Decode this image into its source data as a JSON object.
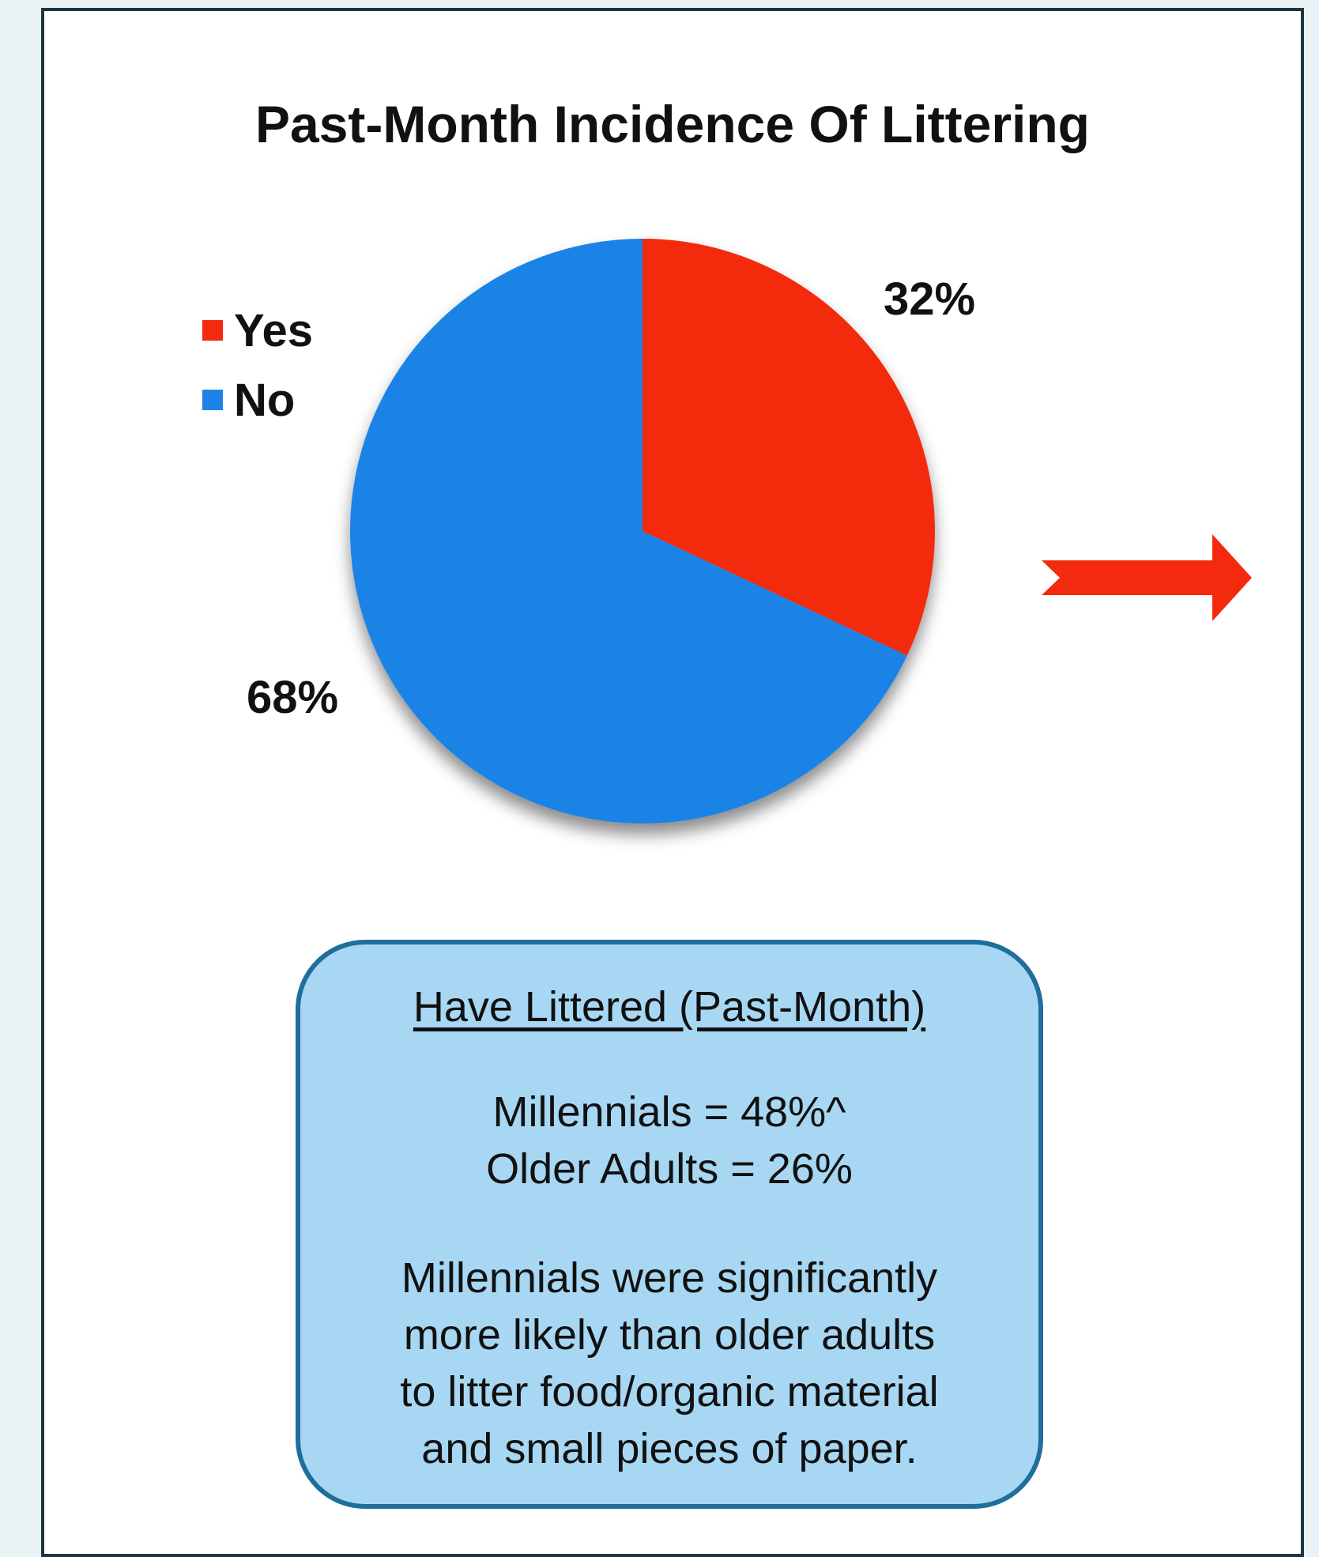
{
  "chart_data": {
    "type": "pie",
    "title": "Past-Month Incidence Of Littering",
    "slices": [
      {
        "label": "Yes",
        "value": 32,
        "display": "32%",
        "color": "#f42a0f"
      },
      {
        "label": "No",
        "value": 68,
        "display": "68%",
        "color": "#1e83e6"
      }
    ],
    "legend": {
      "placement": "top-left",
      "entries": [
        "Yes",
        "No"
      ]
    }
  },
  "arrow": {
    "color": "#f42a0f",
    "icon": "right-arrow-icon"
  },
  "info_box": {
    "heading": "Have Littered (Past-Month)",
    "stats": [
      "Millennials = 48%^",
      "Older Adults = 26%"
    ],
    "note": [
      "Millennials were significantly",
      "more likely than older adults",
      "to litter food/organic material",
      "and small pieces of paper."
    ],
    "background": "#a7d7f2",
    "border": "#1f6e9c"
  }
}
